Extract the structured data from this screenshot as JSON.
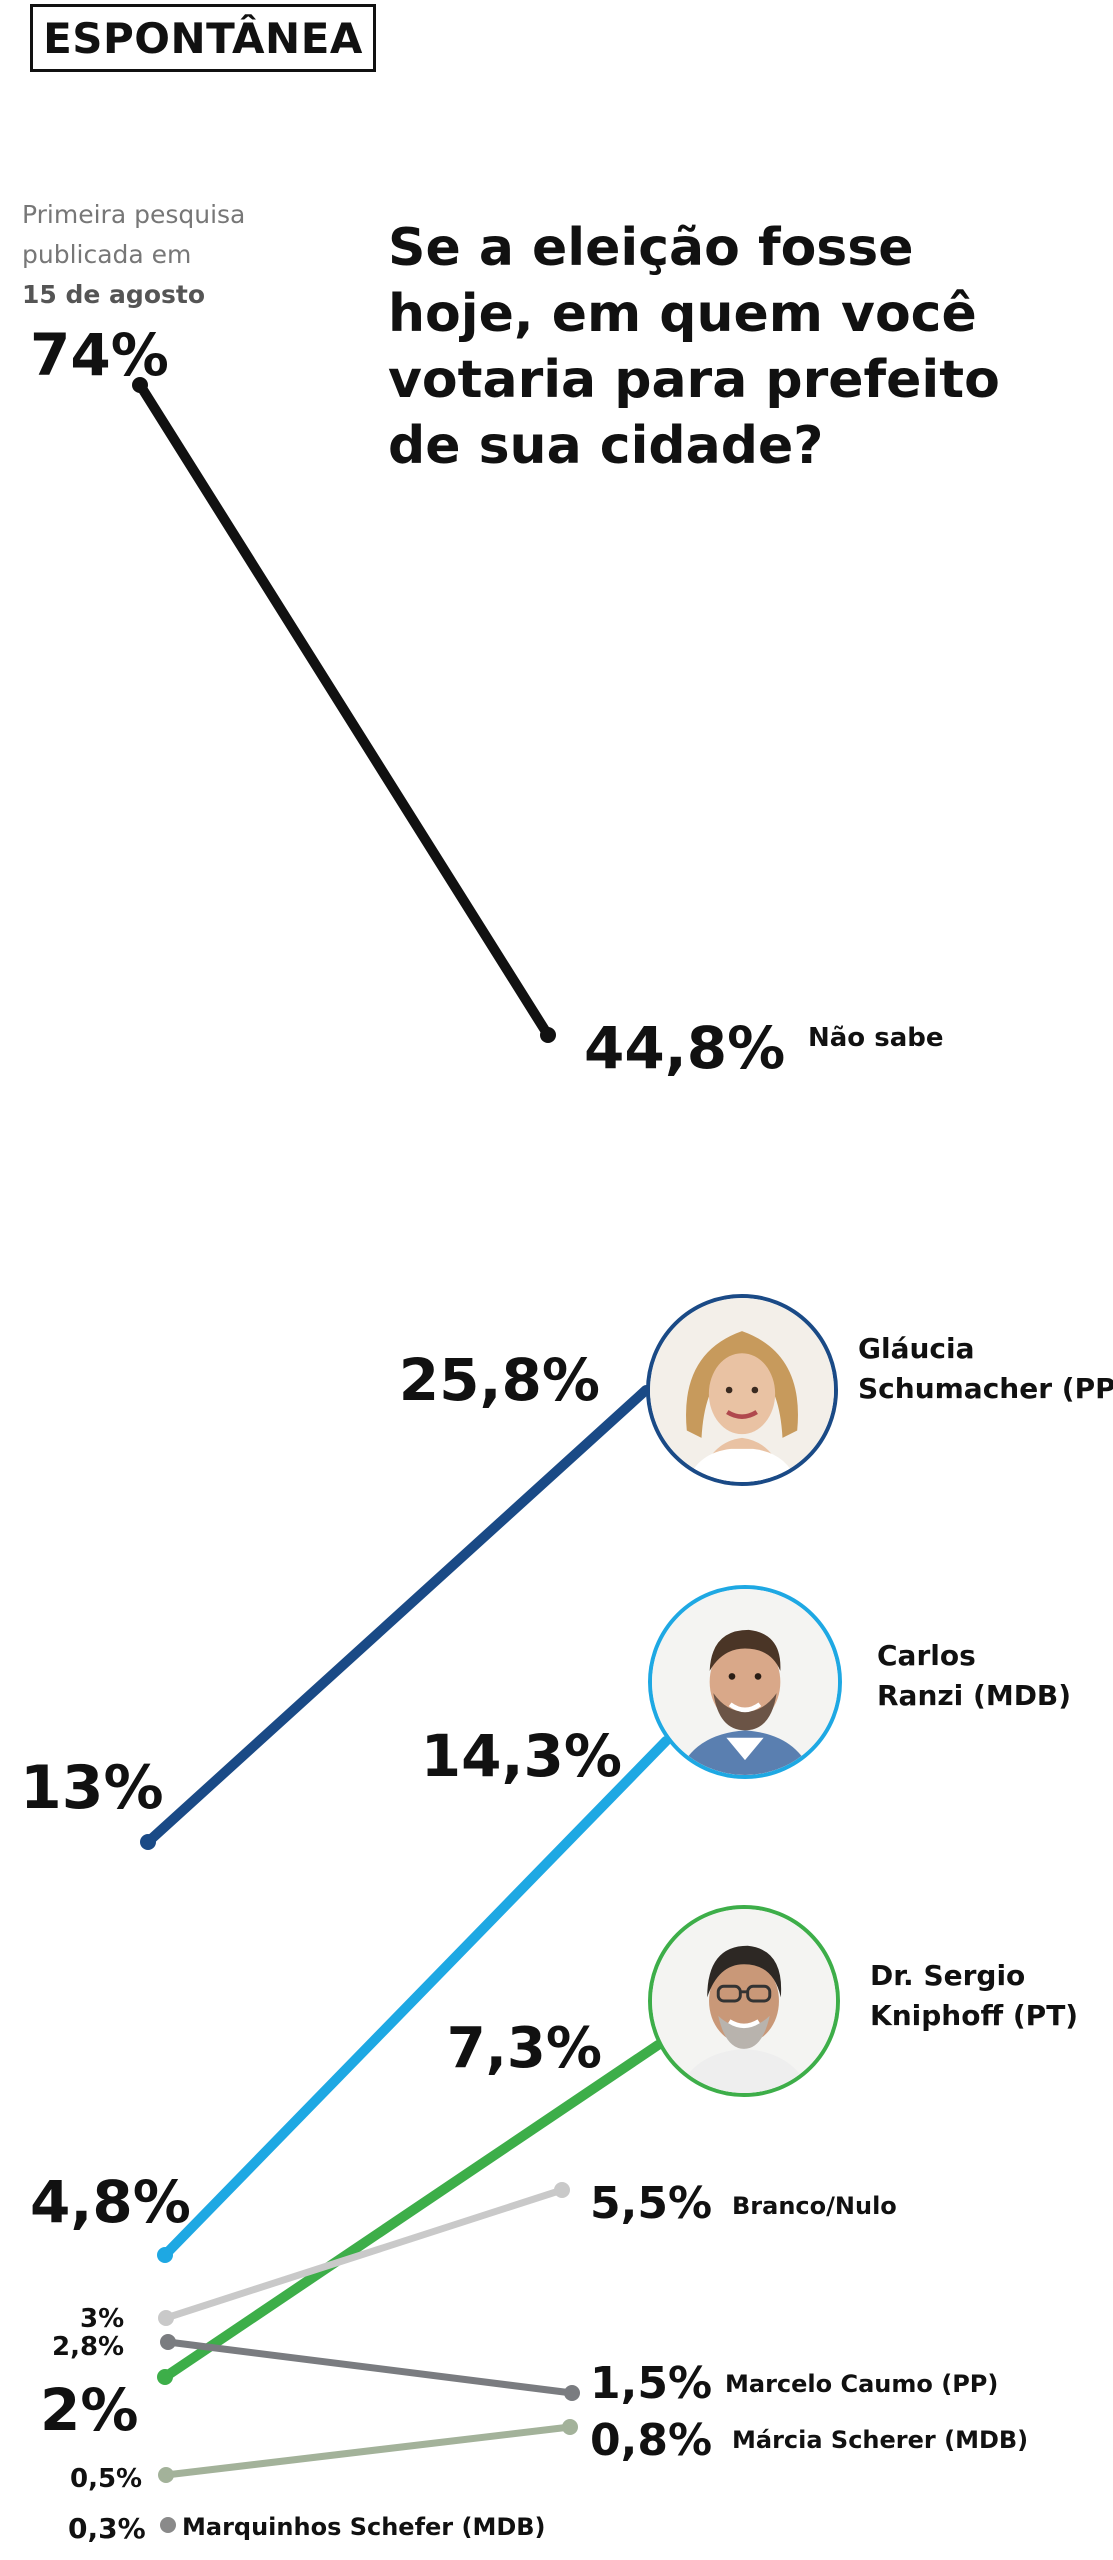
{
  "section_tag": "ESPONTÂNEA",
  "intro": {
    "line1": "Primeira pesquisa",
    "line2": "publicada em",
    "date": "15 de agosto"
  },
  "question": "Se a eleição fosse hoje, em quem você votaria para prefeito de sua cidade?",
  "chart_data": {
    "type": "line",
    "title": "Se a eleição fosse hoje, em quem você votaria para prefeito de sua cidade?",
    "x": [
      "15 de agosto",
      ""
    ],
    "ylim": [
      0,
      74
    ],
    "grid": false,
    "legend": "direct labels at line ends",
    "series": [
      {
        "name": "Não sabe",
        "color": "#111111",
        "start": 74,
        "end": 44.8,
        "start_label": "74%",
        "end_label": "44,8%",
        "photo": false
      },
      {
        "name": "Gláucia Schumacher (PP)",
        "color": "#1a4a86",
        "start": 13,
        "end": 25.8,
        "start_label": "13%",
        "end_label": "25,8%",
        "photo": true,
        "photo_icon": "woman-portrait-icon"
      },
      {
        "name": "Carlos Ranzi (MDB)",
        "color": "#1ea8e3",
        "start": 4.8,
        "end": 14.3,
        "start_label": "4,8%",
        "end_label": "14,3%",
        "photo": true,
        "photo_icon": "man-portrait-icon"
      },
      {
        "name": "Dr. Sergio Kniphoff (PT)",
        "color": "#3dae49",
        "start": 2,
        "end": 7.3,
        "start_label": "2%",
        "end_label": "7,3%",
        "photo": true,
        "photo_icon": "older-man-portrait-icon"
      },
      {
        "name": "Branco/Nulo",
        "color": "#c9c9c9",
        "start": 3,
        "end": 5.5,
        "start_label": "3%",
        "end_label": "5,5%",
        "photo": false
      },
      {
        "name": "Marcelo Caumo (PP)",
        "color": "#7a7c80",
        "start": 2.8,
        "end": 1.5,
        "start_label": "2,8%",
        "end_label": "1,5%",
        "photo": false
      },
      {
        "name": "Márcia Scherer (MDB)",
        "color": "#a3b29a",
        "start": 0.5,
        "end": 0.8,
        "start_label": "0,5%",
        "end_label": "0,8%",
        "photo": false
      },
      {
        "name": "Marquinhos Schefer (MDB)",
        "color": "#8a8a8a",
        "start": 0.3,
        "end": null,
        "start_label": "0,3%",
        "end_label": "",
        "photo": false
      }
    ]
  }
}
